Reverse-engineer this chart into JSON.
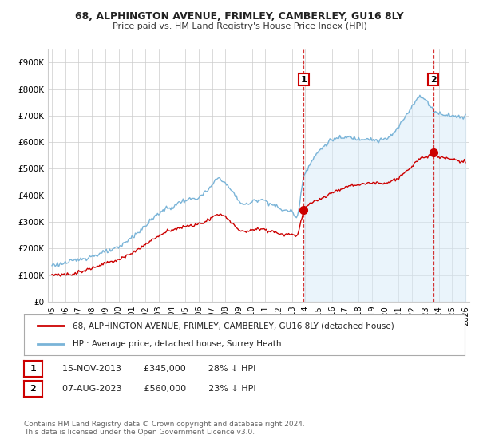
{
  "title": "68, ALPHINGTON AVENUE, FRIMLEY, CAMBERLEY, GU16 8LY",
  "subtitle": "Price paid vs. HM Land Registry's House Price Index (HPI)",
  "legend_line1": "68, ALPHINGTON AVENUE, FRIMLEY, CAMBERLEY, GU16 8LY (detached house)",
  "legend_line2": "HPI: Average price, detached house, Surrey Heath",
  "annotation1_label": "1",
  "annotation1_date": "15-NOV-2013",
  "annotation1_price": "£345,000",
  "annotation1_hpi": "28% ↓ HPI",
  "annotation2_label": "2",
  "annotation2_date": "07-AUG-2023",
  "annotation2_price": "£560,000",
  "annotation2_hpi": "23% ↓ HPI",
  "footnote": "Contains HM Land Registry data © Crown copyright and database right 2024.\nThis data is licensed under the Open Government Licence v3.0.",
  "hpi_color": "#7ab4d8",
  "hpi_fill_color": "#d6eaf8",
  "price_color": "#cc0000",
  "annotation_box_color": "#cc0000",
  "ylim": [
    0,
    950000
  ],
  "yticks": [
    0,
    100000,
    200000,
    300000,
    400000,
    500000,
    600000,
    700000,
    800000,
    900000
  ],
  "ytick_labels": [
    "£0",
    "£100K",
    "£200K",
    "£300K",
    "£400K",
    "£500K",
    "£600K",
    "£700K",
    "£800K",
    "£900K"
  ],
  "background_color": "#ffffff",
  "grid_color": "#cccccc",
  "purchase1_x": 2013.88,
  "purchase1_y": 345000,
  "purchase2_x": 2023.58,
  "purchase2_y": 560000,
  "xlim_left": 1994.7,
  "xlim_right": 2026.3
}
